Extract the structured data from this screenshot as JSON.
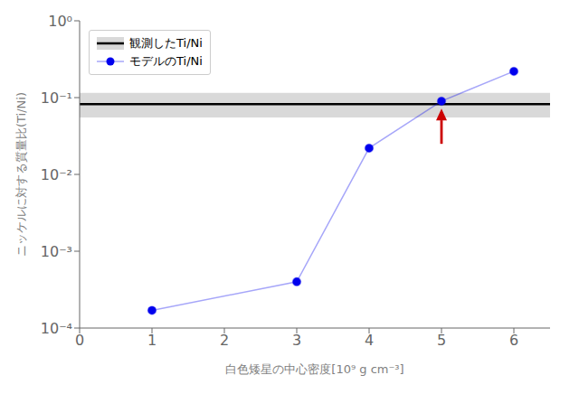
{
  "chart_data": {
    "type": "line",
    "xlabel": "白色矮星の中心密度[10⁹ g cm⁻³]",
    "ylabel": "ニッケルに対する質量比(Ti/Ni)",
    "x": [
      1,
      3,
      4,
      5,
      6
    ],
    "series": [
      {
        "name": "モデルのTi/Ni",
        "color": "#0000ee",
        "marker": "o",
        "values": [
          0.00017,
          0.0004,
          0.022,
          0.09,
          0.22
        ]
      }
    ],
    "observed": {
      "name": "観測したTi/Ni",
      "value": 0.082,
      "low": 0.055,
      "high": 0.115,
      "color": "#000000"
    },
    "annotations": [
      {
        "type": "arrow",
        "x": 5.0,
        "y_start": 0.025,
        "y_end": 0.072,
        "color": "#cc0000"
      }
    ],
    "xlim": [
      0,
      6.5
    ],
    "xticks": [
      0,
      1,
      2,
      3,
      4,
      5,
      6
    ],
    "ylim": [
      0.0001,
      1
    ],
    "yticks": [
      {
        "value": 0.0001,
        "label": "10⁻⁴"
      },
      {
        "value": 0.001,
        "label": "10⁻³"
      },
      {
        "value": 0.01,
        "label": "10⁻²"
      },
      {
        "value": 0.1,
        "label": "10⁻¹"
      },
      {
        "value": 1,
        "label": "10⁰"
      }
    ],
    "log": "y",
    "legend": "upper left",
    "grid": false
  }
}
